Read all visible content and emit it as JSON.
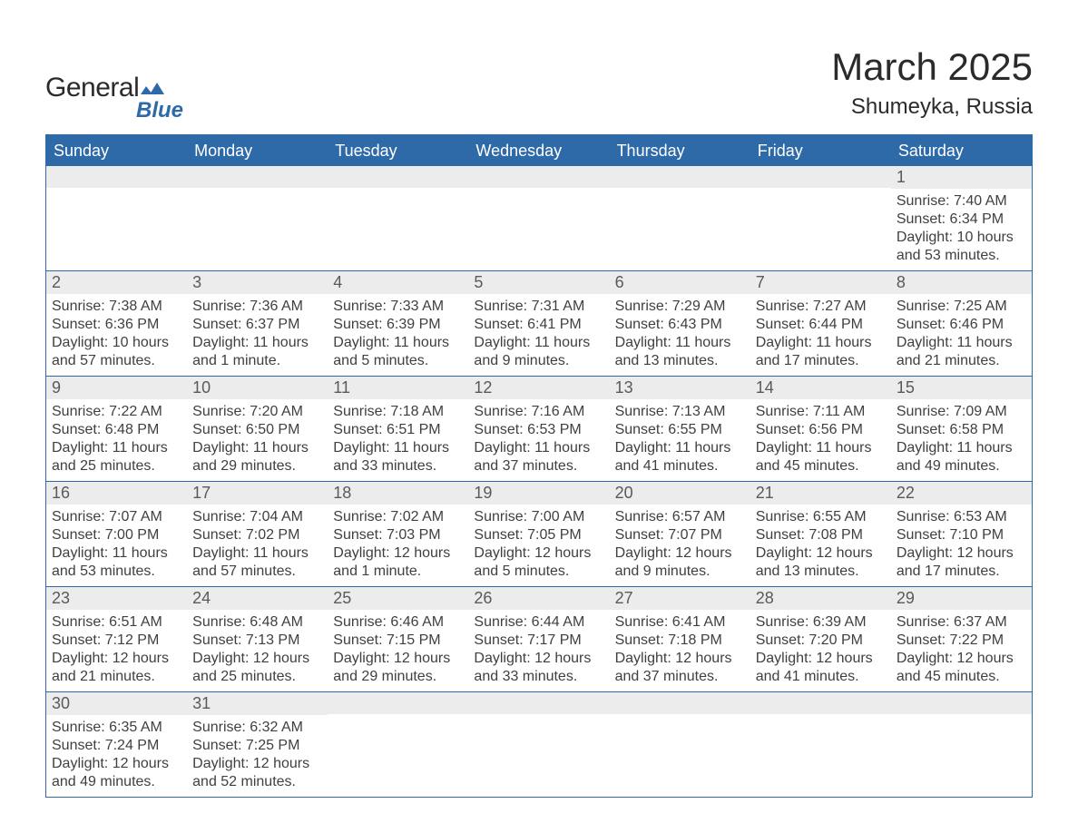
{
  "logo": {
    "word1": "General",
    "word2": "Blue",
    "color_text": "#2b2b2b",
    "color_accent": "#2f6aa8"
  },
  "title": {
    "month": "March 2025",
    "location": "Shumeyka, Russia"
  },
  "colors": {
    "header_bg": "#2f6aa8",
    "header_text": "#ffffff",
    "band_bg": "#ececec",
    "border": "#2f6aa8",
    "body_text": "#404040"
  },
  "daysOfWeek": [
    "Sunday",
    "Monday",
    "Tuesday",
    "Wednesday",
    "Thursday",
    "Friday",
    "Saturday"
  ],
  "weeks": [
    [
      null,
      null,
      null,
      null,
      null,
      null,
      {
        "n": 1,
        "sunrise": "7:40 AM",
        "sunset": "6:34 PM",
        "daylight": "10 hours and 53 minutes."
      }
    ],
    [
      {
        "n": 2,
        "sunrise": "7:38 AM",
        "sunset": "6:36 PM",
        "daylight": "10 hours and 57 minutes."
      },
      {
        "n": 3,
        "sunrise": "7:36 AM",
        "sunset": "6:37 PM",
        "daylight": "11 hours and 1 minute."
      },
      {
        "n": 4,
        "sunrise": "7:33 AM",
        "sunset": "6:39 PM",
        "daylight": "11 hours and 5 minutes."
      },
      {
        "n": 5,
        "sunrise": "7:31 AM",
        "sunset": "6:41 PM",
        "daylight": "11 hours and 9 minutes."
      },
      {
        "n": 6,
        "sunrise": "7:29 AM",
        "sunset": "6:43 PM",
        "daylight": "11 hours and 13 minutes."
      },
      {
        "n": 7,
        "sunrise": "7:27 AM",
        "sunset": "6:44 PM",
        "daylight": "11 hours and 17 minutes."
      },
      {
        "n": 8,
        "sunrise": "7:25 AM",
        "sunset": "6:46 PM",
        "daylight": "11 hours and 21 minutes."
      }
    ],
    [
      {
        "n": 9,
        "sunrise": "7:22 AM",
        "sunset": "6:48 PM",
        "daylight": "11 hours and 25 minutes."
      },
      {
        "n": 10,
        "sunrise": "7:20 AM",
        "sunset": "6:50 PM",
        "daylight": "11 hours and 29 minutes."
      },
      {
        "n": 11,
        "sunrise": "7:18 AM",
        "sunset": "6:51 PM",
        "daylight": "11 hours and 33 minutes."
      },
      {
        "n": 12,
        "sunrise": "7:16 AM",
        "sunset": "6:53 PM",
        "daylight": "11 hours and 37 minutes."
      },
      {
        "n": 13,
        "sunrise": "7:13 AM",
        "sunset": "6:55 PM",
        "daylight": "11 hours and 41 minutes."
      },
      {
        "n": 14,
        "sunrise": "7:11 AM",
        "sunset": "6:56 PM",
        "daylight": "11 hours and 45 minutes."
      },
      {
        "n": 15,
        "sunrise": "7:09 AM",
        "sunset": "6:58 PM",
        "daylight": "11 hours and 49 minutes."
      }
    ],
    [
      {
        "n": 16,
        "sunrise": "7:07 AM",
        "sunset": "7:00 PM",
        "daylight": "11 hours and 53 minutes."
      },
      {
        "n": 17,
        "sunrise": "7:04 AM",
        "sunset": "7:02 PM",
        "daylight": "11 hours and 57 minutes."
      },
      {
        "n": 18,
        "sunrise": "7:02 AM",
        "sunset": "7:03 PM",
        "daylight": "12 hours and 1 minute."
      },
      {
        "n": 19,
        "sunrise": "7:00 AM",
        "sunset": "7:05 PM",
        "daylight": "12 hours and 5 minutes."
      },
      {
        "n": 20,
        "sunrise": "6:57 AM",
        "sunset": "7:07 PM",
        "daylight": "12 hours and 9 minutes."
      },
      {
        "n": 21,
        "sunrise": "6:55 AM",
        "sunset": "7:08 PM",
        "daylight": "12 hours and 13 minutes."
      },
      {
        "n": 22,
        "sunrise": "6:53 AM",
        "sunset": "7:10 PM",
        "daylight": "12 hours and 17 minutes."
      }
    ],
    [
      {
        "n": 23,
        "sunrise": "6:51 AM",
        "sunset": "7:12 PM",
        "daylight": "12 hours and 21 minutes."
      },
      {
        "n": 24,
        "sunrise": "6:48 AM",
        "sunset": "7:13 PM",
        "daylight": "12 hours and 25 minutes."
      },
      {
        "n": 25,
        "sunrise": "6:46 AM",
        "sunset": "7:15 PM",
        "daylight": "12 hours and 29 minutes."
      },
      {
        "n": 26,
        "sunrise": "6:44 AM",
        "sunset": "7:17 PM",
        "daylight": "12 hours and 33 minutes."
      },
      {
        "n": 27,
        "sunrise": "6:41 AM",
        "sunset": "7:18 PM",
        "daylight": "12 hours and 37 minutes."
      },
      {
        "n": 28,
        "sunrise": "6:39 AM",
        "sunset": "7:20 PM",
        "daylight": "12 hours and 41 minutes."
      },
      {
        "n": 29,
        "sunrise": "6:37 AM",
        "sunset": "7:22 PM",
        "daylight": "12 hours and 45 minutes."
      }
    ],
    [
      {
        "n": 30,
        "sunrise": "6:35 AM",
        "sunset": "7:24 PM",
        "daylight": "12 hours and 49 minutes."
      },
      {
        "n": 31,
        "sunrise": "6:32 AM",
        "sunset": "7:25 PM",
        "daylight": "12 hours and 52 minutes."
      },
      null,
      null,
      null,
      null,
      null
    ]
  ],
  "labels": {
    "sunrise": "Sunrise: ",
    "sunset": "Sunset: ",
    "daylight": "Daylight: "
  }
}
